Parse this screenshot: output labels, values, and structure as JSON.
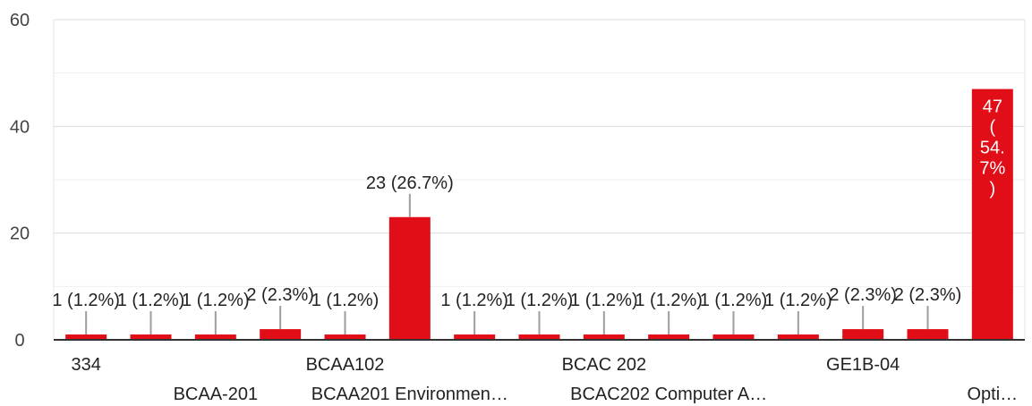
{
  "chart_data": {
    "type": "bar",
    "color": "#e10e18",
    "ylim": [
      0,
      60
    ],
    "yticks": [
      0,
      20,
      40,
      60
    ],
    "grid": true,
    "categories": [
      "334",
      "BCAA-201",
      "BCAA-201",
      "BCAA 102",
      "BCAA102",
      "BCAA201 Environment...",
      "BCAC 202",
      "BCAC 202",
      "BCAC 202",
      "BCAC202 Computer A...",
      "BCAC202 Computer A...",
      "GE1B-04",
      "GE1B-04",
      "GE1B-04",
      "Opti..."
    ],
    "values": [
      1,
      1,
      1,
      2,
      1,
      23,
      1,
      1,
      1,
      1,
      1,
      1,
      2,
      2,
      47
    ],
    "data_labels": [
      "1 (1.2%)",
      "1 (1.2%)",
      "1 (1.2%)",
      "2 (2.3%)",
      "1 (1.2%)",
      "23 (26.7%)",
      "1 (1.2%)",
      "1 (1.2%)",
      "1 (1.2%)",
      "1 (1.2%)",
      "1 (1.2%)",
      "1 (1.2%)",
      "2 (2.3%)",
      "2 (2.3%)",
      "47 (54.7%)"
    ],
    "visible_xtick_labels": [
      {
        "index": 0,
        "text": "334"
      },
      {
        "index": 2,
        "text": "BCAA-201"
      },
      {
        "index": 4,
        "text": "BCAA102"
      },
      {
        "index": 5,
        "text": "BCAA201 Environmen…"
      },
      {
        "index": 8,
        "text": "BCAC 202"
      },
      {
        "index": 9,
        "text": "BCAC202 Computer A…"
      },
      {
        "index": 12,
        "text": "GE1B-04"
      },
      {
        "index": 14,
        "text": "Opti…"
      }
    ]
  }
}
